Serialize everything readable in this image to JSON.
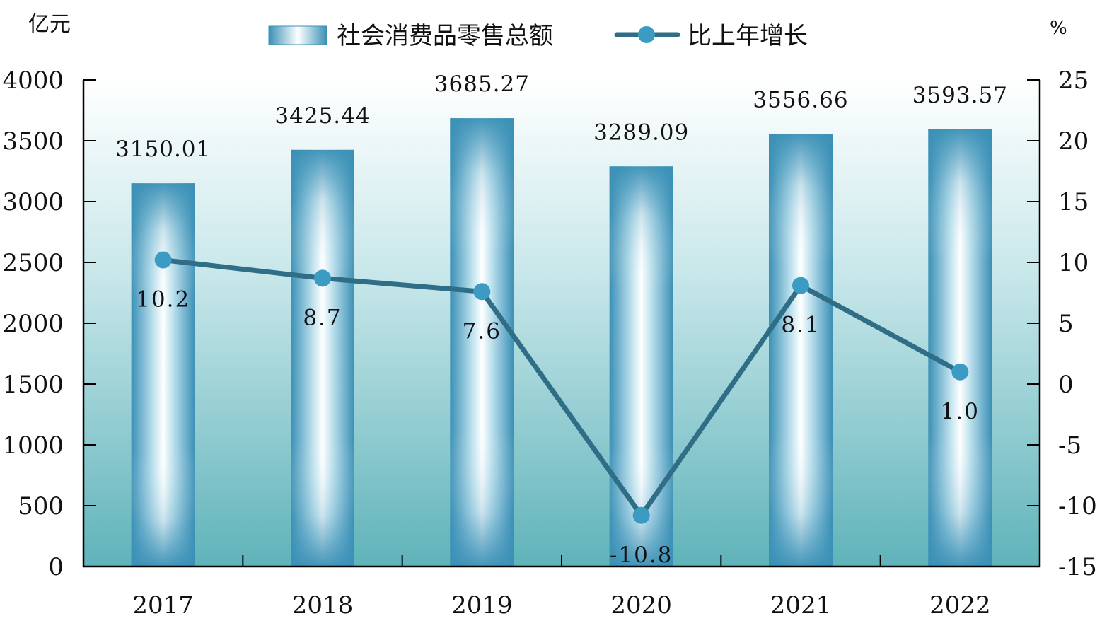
{
  "chart_data": {
    "type": "bar",
    "categories": [
      "2017",
      "2018",
      "2019",
      "2020",
      "2021",
      "2022"
    ],
    "series": [
      {
        "name": "社会消费品零售总额",
        "type": "bar",
        "axis": "left",
        "values": [
          3150.01,
          3425.44,
          3685.27,
          3289.09,
          3556.66,
          3593.57
        ],
        "labels": [
          "3150.01",
          "3425.44",
          "3685.27",
          "3289.09",
          "3556.66",
          "3593.57"
        ]
      },
      {
        "name": "比上年增长",
        "type": "line",
        "axis": "right",
        "values": [
          10.2,
          8.7,
          7.6,
          -10.8,
          8.1,
          1.0
        ],
        "labels": [
          "10.2",
          "8.7",
          "7.6",
          "-10.8",
          "8.1",
          "1.0"
        ]
      }
    ],
    "left_axis": {
      "unit": "亿元",
      "ylim": [
        0,
        4000
      ],
      "ticks": [
        "0",
        "500",
        "1000",
        "1500",
        "2000",
        "2500",
        "3000",
        "3500",
        "4000"
      ]
    },
    "right_axis": {
      "unit": "%",
      "ylim": [
        -15,
        25
      ],
      "ticks": [
        "-15",
        "-10",
        "-5",
        "0",
        "5",
        "10",
        "15",
        "20",
        "25"
      ]
    },
    "legend_position": "top-center",
    "grid": false,
    "colors": {
      "bar_edge": "#3A92B8",
      "bar_center": "#FFFFFF",
      "line": "#2F6E86",
      "marker": "#3C9BC2",
      "background_top": "#FFFFFF",
      "background_bottom": "#63B6BC"
    }
  }
}
